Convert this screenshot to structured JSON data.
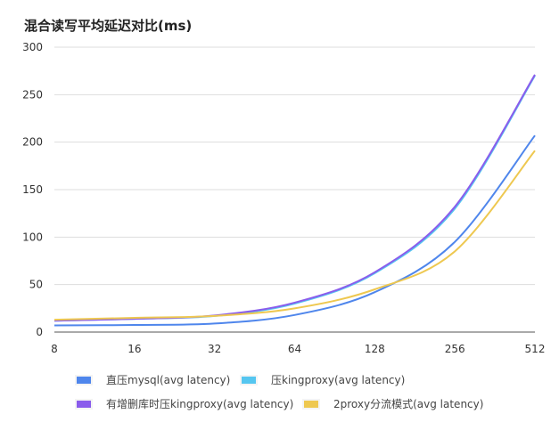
{
  "chart_data": {
    "type": "line",
    "title": "混合读写平均延迟对比(ms)",
    "xlabel": "",
    "ylabel": "",
    "categories": [
      "8",
      "16",
      "32",
      "64",
      "128",
      "256",
      "512"
    ],
    "ylim": [
      0,
      300
    ],
    "yticks": [
      0,
      50,
      100,
      150,
      200,
      250,
      300
    ],
    "grid": true,
    "legend_position": "bottom",
    "series": [
      {
        "name": "直压mysql(avg latency)",
        "color": "#4f86ec",
        "values": [
          7,
          7.5,
          9,
          18,
          42,
          95,
          207
        ]
      },
      {
        "name": "压kingproxy(avg latency)",
        "color": "#55c6f0",
        "values": [
          12,
          14,
          17,
          30,
          62,
          130,
          270
        ]
      },
      {
        "name": "有增删库时压kingproxy(avg latency)",
        "color": "#8a5cec",
        "values": [
          12,
          14,
          17.5,
          31,
          63,
          132,
          271
        ]
      },
      {
        "name": "2proxy分流模式(avg latency)",
        "color": "#eec850",
        "values": [
          13,
          15,
          17,
          25,
          45,
          85,
          191
        ]
      }
    ]
  }
}
